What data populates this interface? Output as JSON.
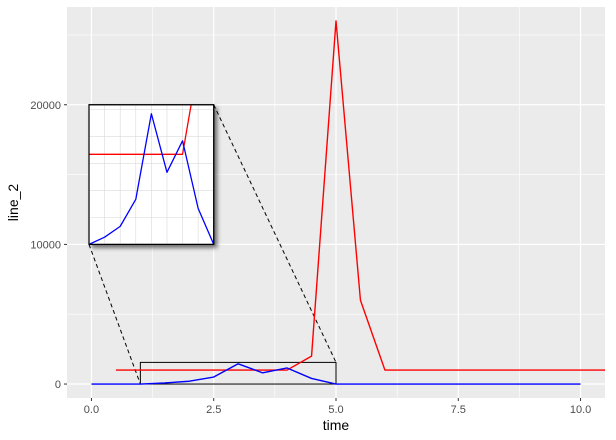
{
  "chart_data": {
    "type": "line",
    "title": "",
    "xlabel": "time",
    "ylabel": "line_2",
    "xlim": [
      -0.5,
      10.5
    ],
    "ylim": [
      -1000,
      27000
    ],
    "grid": true,
    "x_ticks": [
      0,
      2.5,
      5,
      7.5,
      10
    ],
    "x_tick_labels": [
      "0.0",
      "2.5",
      "5.0",
      "7.5",
      "10.0"
    ],
    "y_ticks": [
      0,
      10000,
      20000
    ],
    "y_tick_labels": [
      "0",
      "10000",
      "20000"
    ],
    "colors": {
      "red_series": "#ff0000",
      "blue_series": "#0000ff",
      "panel": "#ebebeb",
      "grid": "#ffffff"
    },
    "series": [
      {
        "color": "#ff0000",
        "x": [
          0.5,
          1.0,
          1.5,
          2.0,
          2.5,
          3.0,
          3.5,
          4.0,
          4.5,
          5.0,
          5.5,
          6.0,
          6.5,
          7.0,
          7.5,
          8.0,
          8.5,
          9.0,
          9.5,
          10.0,
          10.5
        ],
        "y": [
          1000,
          1000,
          1000,
          1000,
          1000,
          1000,
          1000,
          1000,
          2000,
          26000,
          6000,
          1000,
          1000,
          1000,
          1000,
          1000,
          1000,
          1000,
          1000,
          1000,
          1000
        ]
      },
      {
        "color": "#0000ff",
        "x": [
          0,
          0.5,
          1.0,
          1.5,
          2.0,
          2.5,
          3.0,
          3.5,
          4.0,
          4.5,
          5.0,
          5.5,
          6.0,
          6.5,
          7.0,
          7.5,
          8.0,
          8.5,
          9.0,
          9.5,
          10.0
        ],
        "y": [
          0,
          0,
          0,
          80,
          200,
          500,
          1450,
          800,
          1150,
          400,
          0,
          0,
          0,
          0,
          0,
          0,
          0,
          0,
          0,
          0,
          0
        ]
      }
    ],
    "zoom_region": {
      "x": [
        1.0,
        5.0
      ],
      "y": [
        0,
        1550
      ]
    },
    "inset": {
      "x_range": [
        -0.05,
        2.5
      ],
      "y_range": [
        10000,
        20000
      ],
      "display_xlim": [
        1.0,
        5.0
      ],
      "display_ylim": [
        0,
        1550
      ],
      "x_grid": [
        1.5,
        2.0,
        2.5,
        3.0,
        3.5,
        4.0,
        4.5
      ],
      "y_grid": [
        300,
        600,
        900,
        1200,
        1500
      ]
    }
  }
}
